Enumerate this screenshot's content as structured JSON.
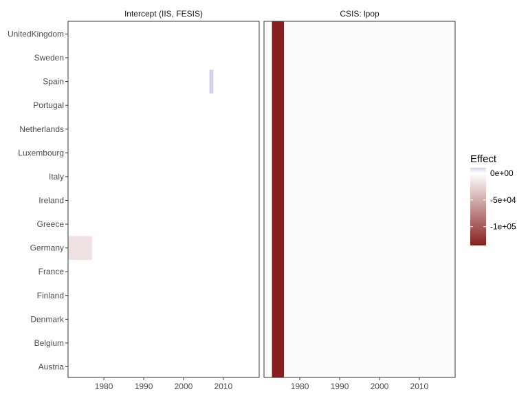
{
  "chart_data": {
    "type": "heatmap",
    "panels": [
      {
        "title": "Intercept (IIS, FESIS)",
        "cells": [
          {
            "country": "Germany",
            "x_start": 1971,
            "x_end": 1977,
            "value": -18000
          },
          {
            "country": "Spain",
            "x_start": 2006.5,
            "x_end": 2007.5,
            "value": 10000
          }
        ]
      },
      {
        "title": "CSIS: lpop",
        "cells": [
          {
            "country": "all",
            "x_start": 1973,
            "x_end": 1976,
            "value": -135000
          }
        ]
      }
    ],
    "y_categories": [
      "UnitedKingdom",
      "Sweden",
      "Spain",
      "Portugal",
      "Netherlands",
      "Luxembourg",
      "Italy",
      "Ireland",
      "Greece",
      "Germany",
      "France",
      "Finland",
      "Denmark",
      "Belgium",
      "Austria"
    ],
    "x_ticks": [
      "1980",
      "1990",
      "2000",
      "2010"
    ],
    "x_range": [
      1971,
      2019
    ],
    "legend": {
      "title": "Effect",
      "labels": [
        "0e+00",
        "-5e+04",
        "-1e+05"
      ],
      "label_values": [
        0,
        -50000,
        -100000
      ],
      "range": [
        -135000,
        10000
      ],
      "colors": {
        "low": "#85201f",
        "mid": "#ffffff",
        "high": "#d6d1ea"
      }
    },
    "panel_background": "#fcfcff",
    "xlabel": "",
    "ylabel": ""
  }
}
